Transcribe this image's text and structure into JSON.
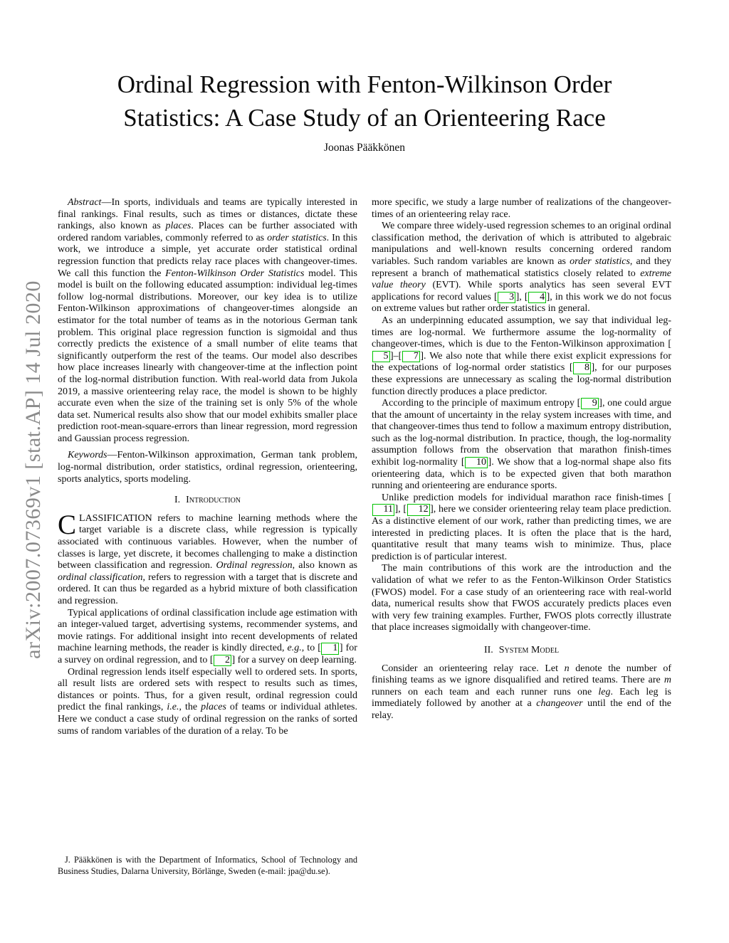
{
  "colors": {
    "cite_border": "#00c300",
    "banner_gray": "#8b8b8b",
    "text": "#0c0c0c"
  },
  "banner": {
    "arxiv_label": "arXiv:2007.07369v1  [stat.AP]  14 Jul 2020"
  },
  "title": {
    "line1": "Ordinal Regression with Fenton-Wilkinson Order",
    "line2": "Statistics: A Case Study of an Orienteering Race",
    "author": "Joonas Pääkkönen"
  },
  "headings": {
    "s1_num": "I.",
    "s1_title": "Introduction",
    "s2_num": "II.",
    "s2_title": "System Model"
  },
  "left": {
    "abstract": [
      {
        "t": "Abstract",
        "s": "i"
      },
      {
        "t": "—In sports, individuals and teams are typically interested in final rankings. Final results, such as times or distances, dictate these rankings, also known as "
      },
      {
        "t": "places",
        "s": "i"
      },
      {
        "t": ". Places can be further associated with ordered random variables, commonly referred to as "
      },
      {
        "t": "order statistics",
        "s": "i"
      },
      {
        "t": ". In this work, we introduce a simple, yet accurate order statistical ordinal regression function that predicts relay race places with changeover-times. We call this function the "
      },
      {
        "t": "Fenton-Wilkinson Order Statistics",
        "s": "i"
      },
      {
        "t": " model. This model is built on the following educated assumption: individual leg-times follow log-normal distributions. Moreover, our key idea is to utilize Fenton-Wilkinson approximations of changeover-times alongside an estimator for the total number of teams as in the notorious German tank problem. This original place regression function is sigmoidal and thus correctly predicts the existence of a small number of elite teams that significantly outperform the rest of the teams. Our model also describes how place increases linearly with changeover-time at the inflection point of the log-normal distribution function. With real-world data from Jukola 2019, a massive orienteering relay race, the model is shown to be highly accurate even when the size of the training set is only 5% of the whole data set. Numerical results also show that our model exhibits smaller place prediction root-mean-square-errors than linear regression, mord regression and Gaussian process regression."
      }
    ],
    "keywords": [
      {
        "t": "Keywords",
        "s": "i"
      },
      {
        "t": "—Fenton-Wilkinson approximation, German tank problem, log-normal distribution, order statistics, ordinal regression, orienteering, sports analytics, sports modeling."
      }
    ],
    "para1_dropcap": "C",
    "para1": [
      {
        "t": "LASSIFICATION refers to machine learning methods where the target variable is a discrete class, while regression is typically associated with continuous variables. However, when the number of classes is large, yet discrete, it becomes challenging to make a distinction between classification and regression. "
      },
      {
        "t": "Ordinal regression",
        "s": "i"
      },
      {
        "t": ", also known as "
      },
      {
        "t": "ordinal classification",
        "s": "i"
      },
      {
        "t": ", refers to regression with a target that is discrete and ordered. It can thus be regarded as a hybrid mixture of both classification and regression."
      }
    ],
    "para2": [
      {
        "t": "Typical applications of ordinal classification include age estimation with an integer-valued target, advertising systems, recommender systems, and movie ratings. For additional insight into recent developments of related machine learning methods, the reader is kindly directed, "
      },
      {
        "t": "e.g.",
        "s": "i"
      },
      {
        "t": ", to ["
      },
      {
        "t": "1",
        "s": "c"
      },
      {
        "t": "] for a survey on ordinal regression, and to ["
      },
      {
        "t": "2",
        "s": "c"
      },
      {
        "t": "] for a survey on deep learning."
      }
    ],
    "para3": [
      {
        "t": "Ordinal regression lends itself especially well to ordered sets. In sports, all result lists are ordered sets with respect to results such as times, distances or points. Thus, for a given result, ordinal regression could predict the final rankings, "
      },
      {
        "t": "i.e.",
        "s": "i"
      },
      {
        "t": ", the "
      },
      {
        "t": "places",
        "s": "i"
      },
      {
        "t": " of teams or individual athletes. Here we conduct a case study of ordinal regression on the ranks of sorted sums of random variables of the duration of a relay. To be"
      }
    ],
    "footnote": [
      {
        "t": "J. Pääkkönen is with the Department of Informatics, School of Technology and Business Studies, Dalarna University, Börlänge, Sweden (e-mail: jpa@du.se)."
      }
    ]
  },
  "right": {
    "p1": [
      {
        "t": "more specific, we study a large number of realizations of the changeover-times of an orienteering relay race."
      }
    ],
    "p2": [
      {
        "t": "We compare three widely-used regression schemes to an original ordinal classification method, the derivation of which is attributed to algebraic manipulations and well-known results concerning ordered random variables. Such random variables are known as "
      },
      {
        "t": "order statistics",
        "s": "i"
      },
      {
        "t": ", and they represent a branch of mathematical statistics closely related to "
      },
      {
        "t": "extreme value theory",
        "s": "i"
      },
      {
        "t": " (EVT). While sports analytics has seen several EVT applications for record values ["
      },
      {
        "t": "3",
        "s": "c"
      },
      {
        "t": "], ["
      },
      {
        "t": "4",
        "s": "c"
      },
      {
        "t": "], in this work we do not focus on extreme values but rather order statistics in general."
      }
    ],
    "p3": [
      {
        "t": "As an underpinning educated assumption, we say that individual leg-times are log-normal. We furthermore assume the log-normality of changeover-times, which is due to the Fenton-Wilkinson approximation ["
      },
      {
        "t": "5",
        "s": "c"
      },
      {
        "t": "]–["
      },
      {
        "t": "7",
        "s": "c"
      },
      {
        "t": "]. We also note that while there exist explicit expressions for the expectations of log-normal order statistics ["
      },
      {
        "t": "8",
        "s": "c"
      },
      {
        "t": "], for our purposes these expressions are unnecessary as scaling the log-normal distribution function directly produces a place predictor."
      }
    ],
    "p4": [
      {
        "t": "According to the principle of maximum entropy ["
      },
      {
        "t": "9",
        "s": "c"
      },
      {
        "t": "], one could argue that the amount of uncertainty in the relay system increases with time, and that changeover-times thus tend to follow a maximum entropy distribution, such as the log-normal distribution. In practice, though, the log-normality assumption follows from the observation that marathon finish-times exhibit log-normality ["
      },
      {
        "t": "10",
        "s": "c"
      },
      {
        "t": "]. We show that a log-normal shape also fits orienteering data, which is to be expected given that both marathon running and orienteering are endurance sports."
      }
    ],
    "p5": [
      {
        "t": "Unlike prediction models for individual marathon race finish-times ["
      },
      {
        "t": "11",
        "s": "c"
      },
      {
        "t": "], ["
      },
      {
        "t": "12",
        "s": "c"
      },
      {
        "t": "], here we consider orienteering relay team place prediction. As a distinctive element of our work, rather than predicting times, we are interested in predicting places. It is often the place that is the hard, quantitative result that many teams wish to minimize. Thus, place prediction is of particular interest."
      }
    ],
    "p6": [
      {
        "t": "The main contributions of this work are the introduction and the validation of what we refer to as the Fenton-Wilkinson Order Statistics (FWOS) model. For a case study of an orienteering race with real-world data, numerical results show that FWOS accurately predicts places even with very few training examples. Further, FWOS plots correctly illustrate that place increases sigmoidally with changeover-time."
      }
    ],
    "p7": [
      {
        "t": "Consider an orienteering relay race. Let "
      },
      {
        "t": "n",
        "s": "i"
      },
      {
        "t": " denote the number of finishing teams as we ignore disqualified and retired teams. There are "
      },
      {
        "t": "m",
        "s": "i"
      },
      {
        "t": " runners on each team and each runner runs one "
      },
      {
        "t": "leg",
        "s": "i"
      },
      {
        "t": ". Each leg is immediately followed by another at a "
      },
      {
        "t": "changeover",
        "s": "i"
      },
      {
        "t": " until the end of the relay."
      }
    ]
  }
}
